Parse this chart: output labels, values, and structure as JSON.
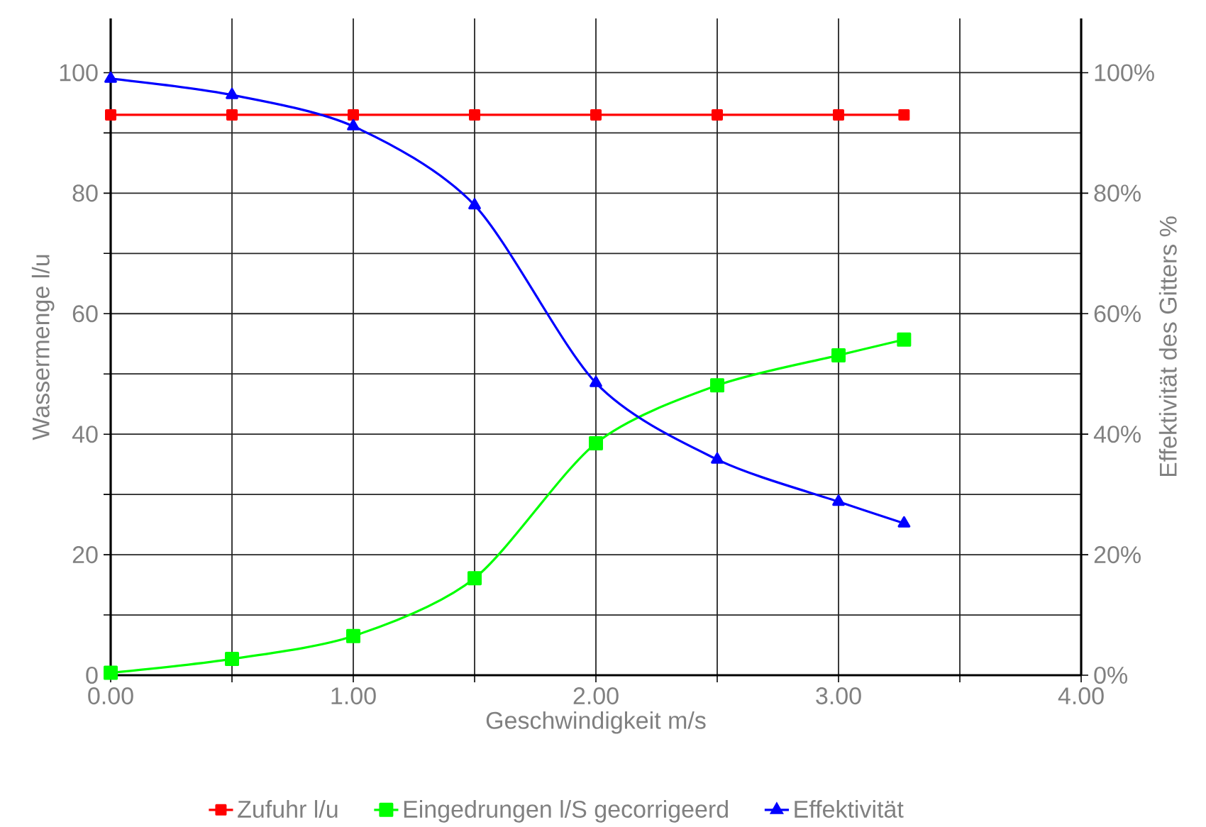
{
  "chart_data": {
    "type": "line",
    "xlabel": "Geschwindigkeit  m/s",
    "ylabel": "Wassermenge  l/u",
    "y2label": "Effektivität des Gitters %",
    "x": [
      0,
      0.5,
      1.0,
      1.5,
      2.0,
      2.5,
      3.0,
      3.27
    ],
    "series": [
      {
        "name": "Zufuhr  l/u",
        "color": "#ff0000",
        "marker": "square",
        "values": [
          93,
          93,
          93,
          93,
          93,
          93,
          93,
          93
        ]
      },
      {
        "name": "Eingedrungen l/S gecorrigeerd",
        "color": "#00ff00",
        "marker": "square",
        "values": [
          0.4,
          2.7,
          6.5,
          16.1,
          38.5,
          48.1,
          53.1,
          55.7
        ]
      },
      {
        "name": "Effektivität",
        "color": "#0000ff",
        "marker": "triangle",
        "axis": "y2",
        "values": [
          99.0,
          96.3,
          91.1,
          78.0,
          48.5,
          35.8,
          28.8,
          25.2
        ]
      }
    ],
    "xlim": [
      0,
      4
    ],
    "xticks": [
      {
        "value": 0,
        "label": "0.00"
      },
      {
        "value": 0.5,
        "label": null
      },
      {
        "value": 1,
        "label": "1.00"
      },
      {
        "value": 1.5,
        "label": null
      },
      {
        "value": 2,
        "label": "2.00"
      },
      {
        "value": 2.5,
        "label": null
      },
      {
        "value": 3,
        "label": "3.00"
      },
      {
        "value": 3.5,
        "label": null
      },
      {
        "value": 4,
        "label": "4.00"
      }
    ],
    "ylim": [
      0,
      109
    ],
    "yticks": [
      0,
      {
        "value": 10,
        "label": null
      },
      20,
      {
        "value": 30,
        "label": null
      },
      40,
      {
        "value": 50,
        "label": null
      },
      60,
      {
        "value": 70,
        "label": null
      },
      80,
      {
        "value": 90,
        "label": null
      },
      100
    ],
    "y2lim": [
      0,
      109
    ],
    "y2ticks": [
      {
        "value": 0,
        "label": "0%"
      },
      {
        "value": 20,
        "label": "20%"
      },
      {
        "value": 40,
        "label": "40%"
      },
      {
        "value": 60,
        "label": "60%"
      },
      {
        "value": 80,
        "label": "80%"
      },
      {
        "value": 100,
        "label": "100%"
      }
    ],
    "grid": true,
    "legend": "bottom",
    "line_style": "solid"
  }
}
